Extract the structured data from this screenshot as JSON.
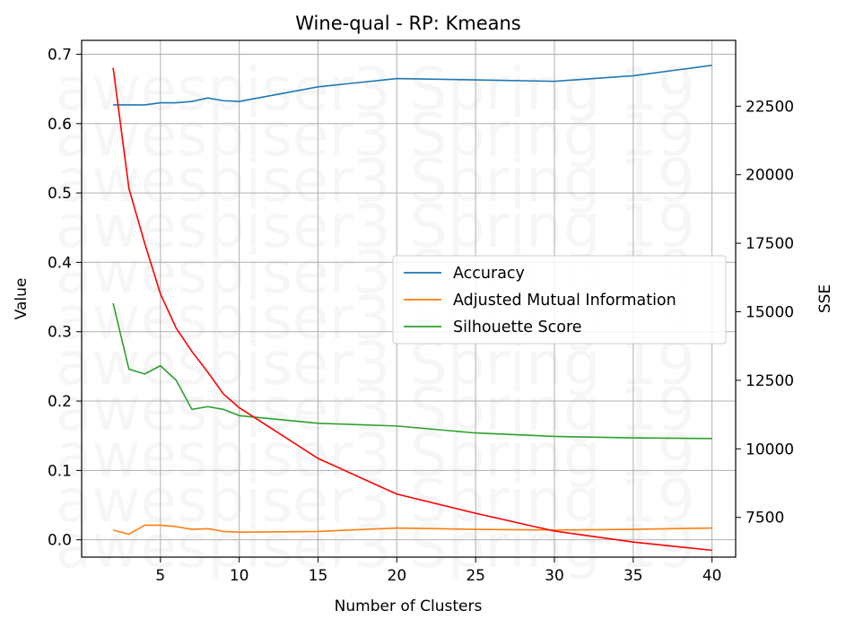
{
  "chart_data": {
    "type": "line",
    "title": "Wine-qual - RP: Kmeans",
    "xlabel": "Number of Clusters",
    "ylabel": "Value",
    "y2label": "SSE",
    "xlim": [
      0,
      41.5
    ],
    "ylim": [
      -0.025,
      0.72
    ],
    "y2lim": [
      6050,
      24900
    ],
    "xticks": [
      5,
      10,
      15,
      20,
      25,
      30,
      35,
      40
    ],
    "yticks": [
      0.0,
      0.1,
      0.2,
      0.3,
      0.4,
      0.5,
      0.6,
      0.7
    ],
    "y2ticks": [
      7500,
      10000,
      12500,
      15000,
      17500,
      20000,
      22500
    ],
    "grid": true,
    "legend_position": "center-right",
    "watermark": "awespiser3 Spring 19",
    "x": [
      2,
      3,
      4,
      5,
      6,
      7,
      8,
      9,
      10,
      15,
      20,
      25,
      30,
      35,
      40
    ],
    "series": [
      {
        "name": "Accuracy",
        "axis": "left",
        "color": "#1f77b4",
        "legend": true,
        "values": [
          0.627,
          0.627,
          0.627,
          0.63,
          0.63,
          0.632,
          0.637,
          0.633,
          0.632,
          0.653,
          0.665,
          0.663,
          0.661,
          0.669,
          0.684
        ]
      },
      {
        "name": "Adjusted Mutual Information",
        "axis": "left",
        "color": "#ff7f0e",
        "legend": true,
        "values": [
          0.014,
          0.008,
          0.021,
          0.021,
          0.019,
          0.015,
          0.016,
          0.012,
          0.011,
          0.012,
          0.017,
          0.015,
          0.014,
          0.015,
          0.017
        ]
      },
      {
        "name": "Silhouette Score",
        "axis": "left",
        "color": "#2ca02c",
        "legend": true,
        "values": [
          0.341,
          0.246,
          0.239,
          0.251,
          0.23,
          0.188,
          0.192,
          0.188,
          0.179,
          0.168,
          0.164,
          0.154,
          0.149,
          0.147,
          0.146
        ]
      },
      {
        "name": "",
        "axis": "right",
        "color": "#ff0000",
        "legend": false,
        "values": [
          23900,
          19500,
          17500,
          15650,
          14400,
          13550,
          12800,
          12000,
          11500,
          9650,
          8350,
          7650,
          7000,
          6600,
          6300
        ]
      }
    ]
  }
}
